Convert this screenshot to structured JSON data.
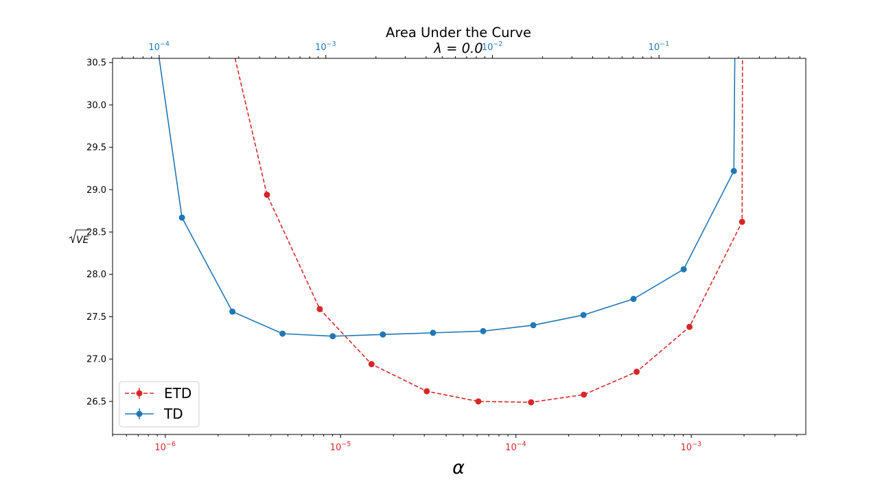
{
  "chart_data": {
    "type": "line",
    "title": "Area Under the Curve",
    "subtitle": "λ = 0.0",
    "xlabel": "α",
    "ylabel": "√VE",
    "ylim": [
      26.11,
      30.55
    ],
    "yticks": [
      "26.5",
      "27.0",
      "27.5",
      "28.0",
      "28.5",
      "29.0",
      "29.5",
      "30.0",
      "30.5"
    ],
    "grid": false,
    "legend_position": "lower-left",
    "colors": {
      "ETD": "#d62728",
      "TD": "#1f77b4",
      "axis": "#000000"
    },
    "x_bottom": {
      "scale": "log",
      "color": "#d62728",
      "range": [
        5e-07,
        0.0045
      ],
      "ticks": [
        {
          "value": 1e-06,
          "base": "10",
          "exp": "−6"
        },
        {
          "value": 1e-05,
          "base": "10",
          "exp": "−5"
        },
        {
          "value": 0.0001,
          "base": "10",
          "exp": "−4"
        },
        {
          "value": 0.001,
          "base": "10",
          "exp": "−3"
        }
      ]
    },
    "x_top": {
      "scale": "log",
      "color": "#1f77b4",
      "range": [
        5.25e-05,
        0.76
      ],
      "ticks": [
        {
          "value": 0.0001,
          "base": "10",
          "exp": "−4"
        },
        {
          "value": 0.001,
          "base": "10",
          "exp": "−3"
        },
        {
          "value": 0.01,
          "base": "10",
          "exp": "−2"
        },
        {
          "value": 0.1,
          "base": "10",
          "exp": "−1"
        }
      ]
    },
    "series": [
      {
        "name": "ETD",
        "axis": "bottom",
        "line_style": "dashed",
        "x": [
          2.5e-06,
          3.8e-06,
          7.6e-06,
          1.5e-05,
          3.1e-05,
          6.1e-05,
          0.000122,
          0.000244,
          0.000488,
          0.000977,
          0.00195,
          0.00196
        ],
        "y": [
          30.55,
          28.94,
          27.59,
          26.94,
          26.62,
          26.5,
          26.49,
          26.58,
          26.85,
          27.38,
          28.62,
          30.55
        ],
        "markers": [
          false,
          true,
          true,
          true,
          true,
          true,
          true,
          true,
          true,
          true,
          true,
          false
        ]
      },
      {
        "name": "TD",
        "axis": "top",
        "line_style": "solid",
        "x": [
          0.0001,
          0.000137,
          0.000275,
          0.00055,
          0.0011,
          0.0022,
          0.0044,
          0.0088,
          0.0176,
          0.0352,
          0.0703,
          0.1406,
          0.2813,
          0.285
        ],
        "y": [
          30.55,
          28.67,
          27.56,
          27.3,
          27.27,
          27.29,
          27.31,
          27.33,
          27.4,
          27.52,
          27.71,
          28.06,
          29.22,
          30.55
        ],
        "markers": [
          false,
          true,
          true,
          true,
          true,
          true,
          true,
          true,
          true,
          true,
          true,
          true,
          true,
          false
        ]
      }
    ]
  }
}
